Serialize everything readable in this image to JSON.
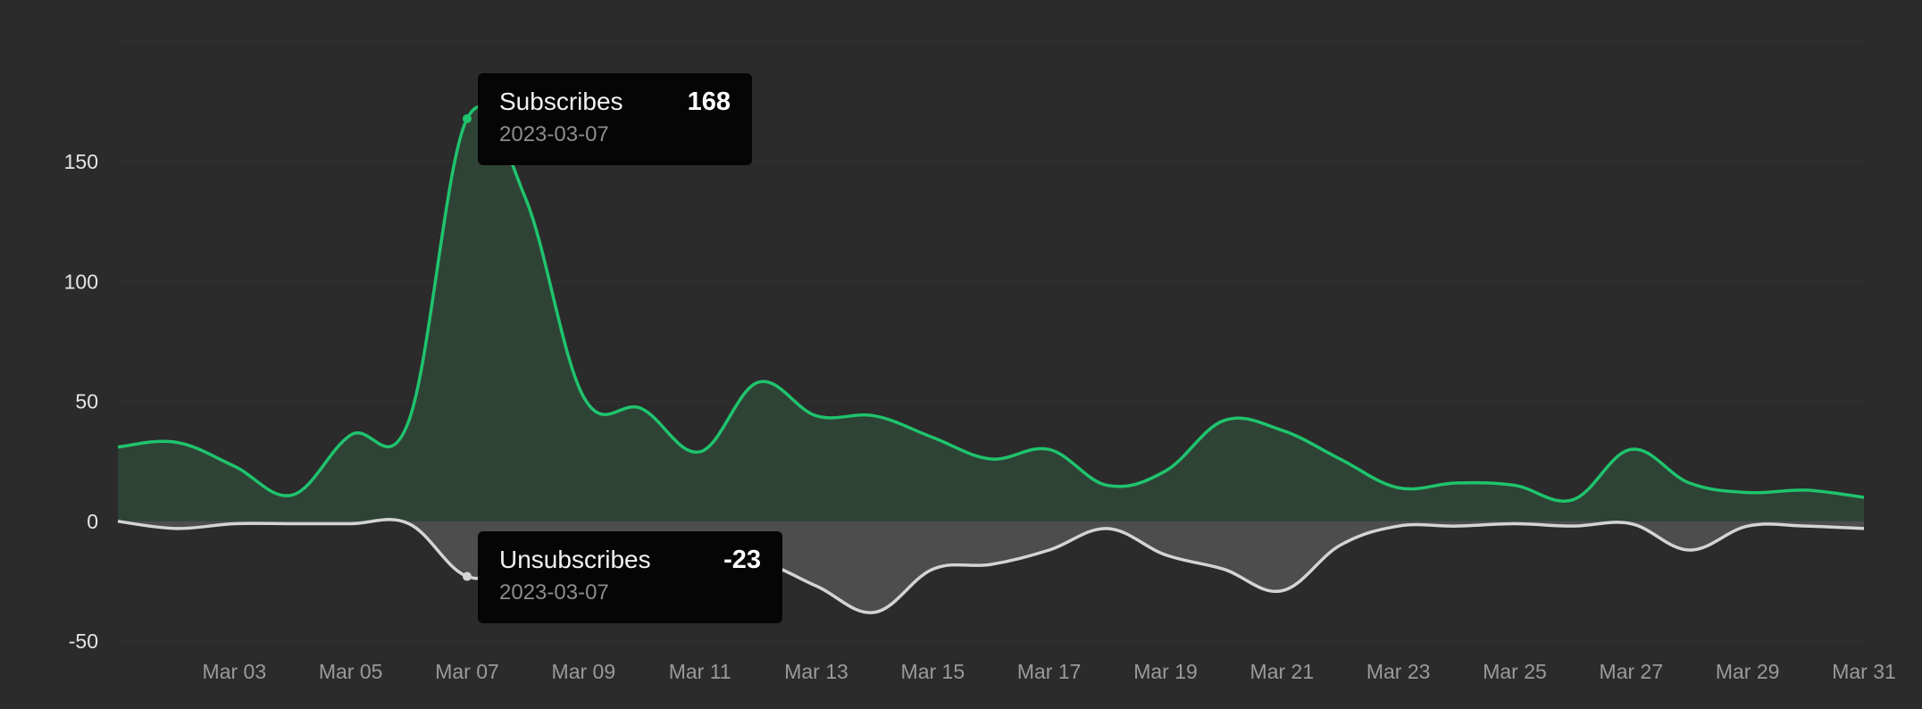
{
  "chart_data": {
    "type": "area",
    "x": [
      "2023-03-01",
      "2023-03-02",
      "2023-03-03",
      "2023-03-04",
      "2023-03-05",
      "2023-03-06",
      "2023-03-07",
      "2023-03-08",
      "2023-03-09",
      "2023-03-10",
      "2023-03-11",
      "2023-03-12",
      "2023-03-13",
      "2023-03-14",
      "2023-03-15",
      "2023-03-16",
      "2023-03-17",
      "2023-03-18",
      "2023-03-19",
      "2023-03-20",
      "2023-03-21",
      "2023-03-22",
      "2023-03-23",
      "2023-03-24",
      "2023-03-25",
      "2023-03-26",
      "2023-03-27",
      "2023-03-28",
      "2023-03-29",
      "2023-03-30",
      "2023-03-31"
    ],
    "x_tick_labels": [
      "Mar 03",
      "Mar 05",
      "Mar 07",
      "Mar 09",
      "Mar 11",
      "Mar 13",
      "Mar 15",
      "Mar 17",
      "Mar 19",
      "Mar 21",
      "Mar 23",
      "Mar 25",
      "Mar 27",
      "Mar 29",
      "Mar 31"
    ],
    "y_ticks": [
      150,
      100,
      50,
      0,
      -50
    ],
    "ylim": [
      -50,
      200
    ],
    "grid": true,
    "series": [
      {
        "name": "Subscribes",
        "color": "#1fc46d",
        "fill": "#2e4336",
        "values": [
          31,
          33,
          23,
          11,
          36,
          42,
          168,
          135,
          52,
          47,
          29,
          58,
          44,
          44,
          35,
          26,
          30,
          15,
          21,
          42,
          38,
          26,
          14,
          16,
          15,
          9,
          30,
          16,
          12,
          13,
          10
        ]
      },
      {
        "name": "Unsubscribes",
        "color": "#d4d4d4",
        "fill": "#4d4d4d",
        "values": [
          0,
          -3,
          -1,
          -1,
          -1,
          -1,
          -23,
          -19,
          -19,
          -13,
          -19,
          -17,
          -27,
          -38,
          -20,
          -18,
          -12,
          -3,
          -14,
          -20,
          -29,
          -10,
          -2,
          -2,
          -1,
          -2,
          -1,
          -12,
          -2,
          -2,
          -3
        ]
      }
    ]
  },
  "tooltips": {
    "subscribes": {
      "label": "Subscribes",
      "value": "168",
      "date": "2023-03-07"
    },
    "unsubscribes": {
      "label": "Unsubscribes",
      "value": "-23",
      "date": "2023-03-07"
    }
  }
}
